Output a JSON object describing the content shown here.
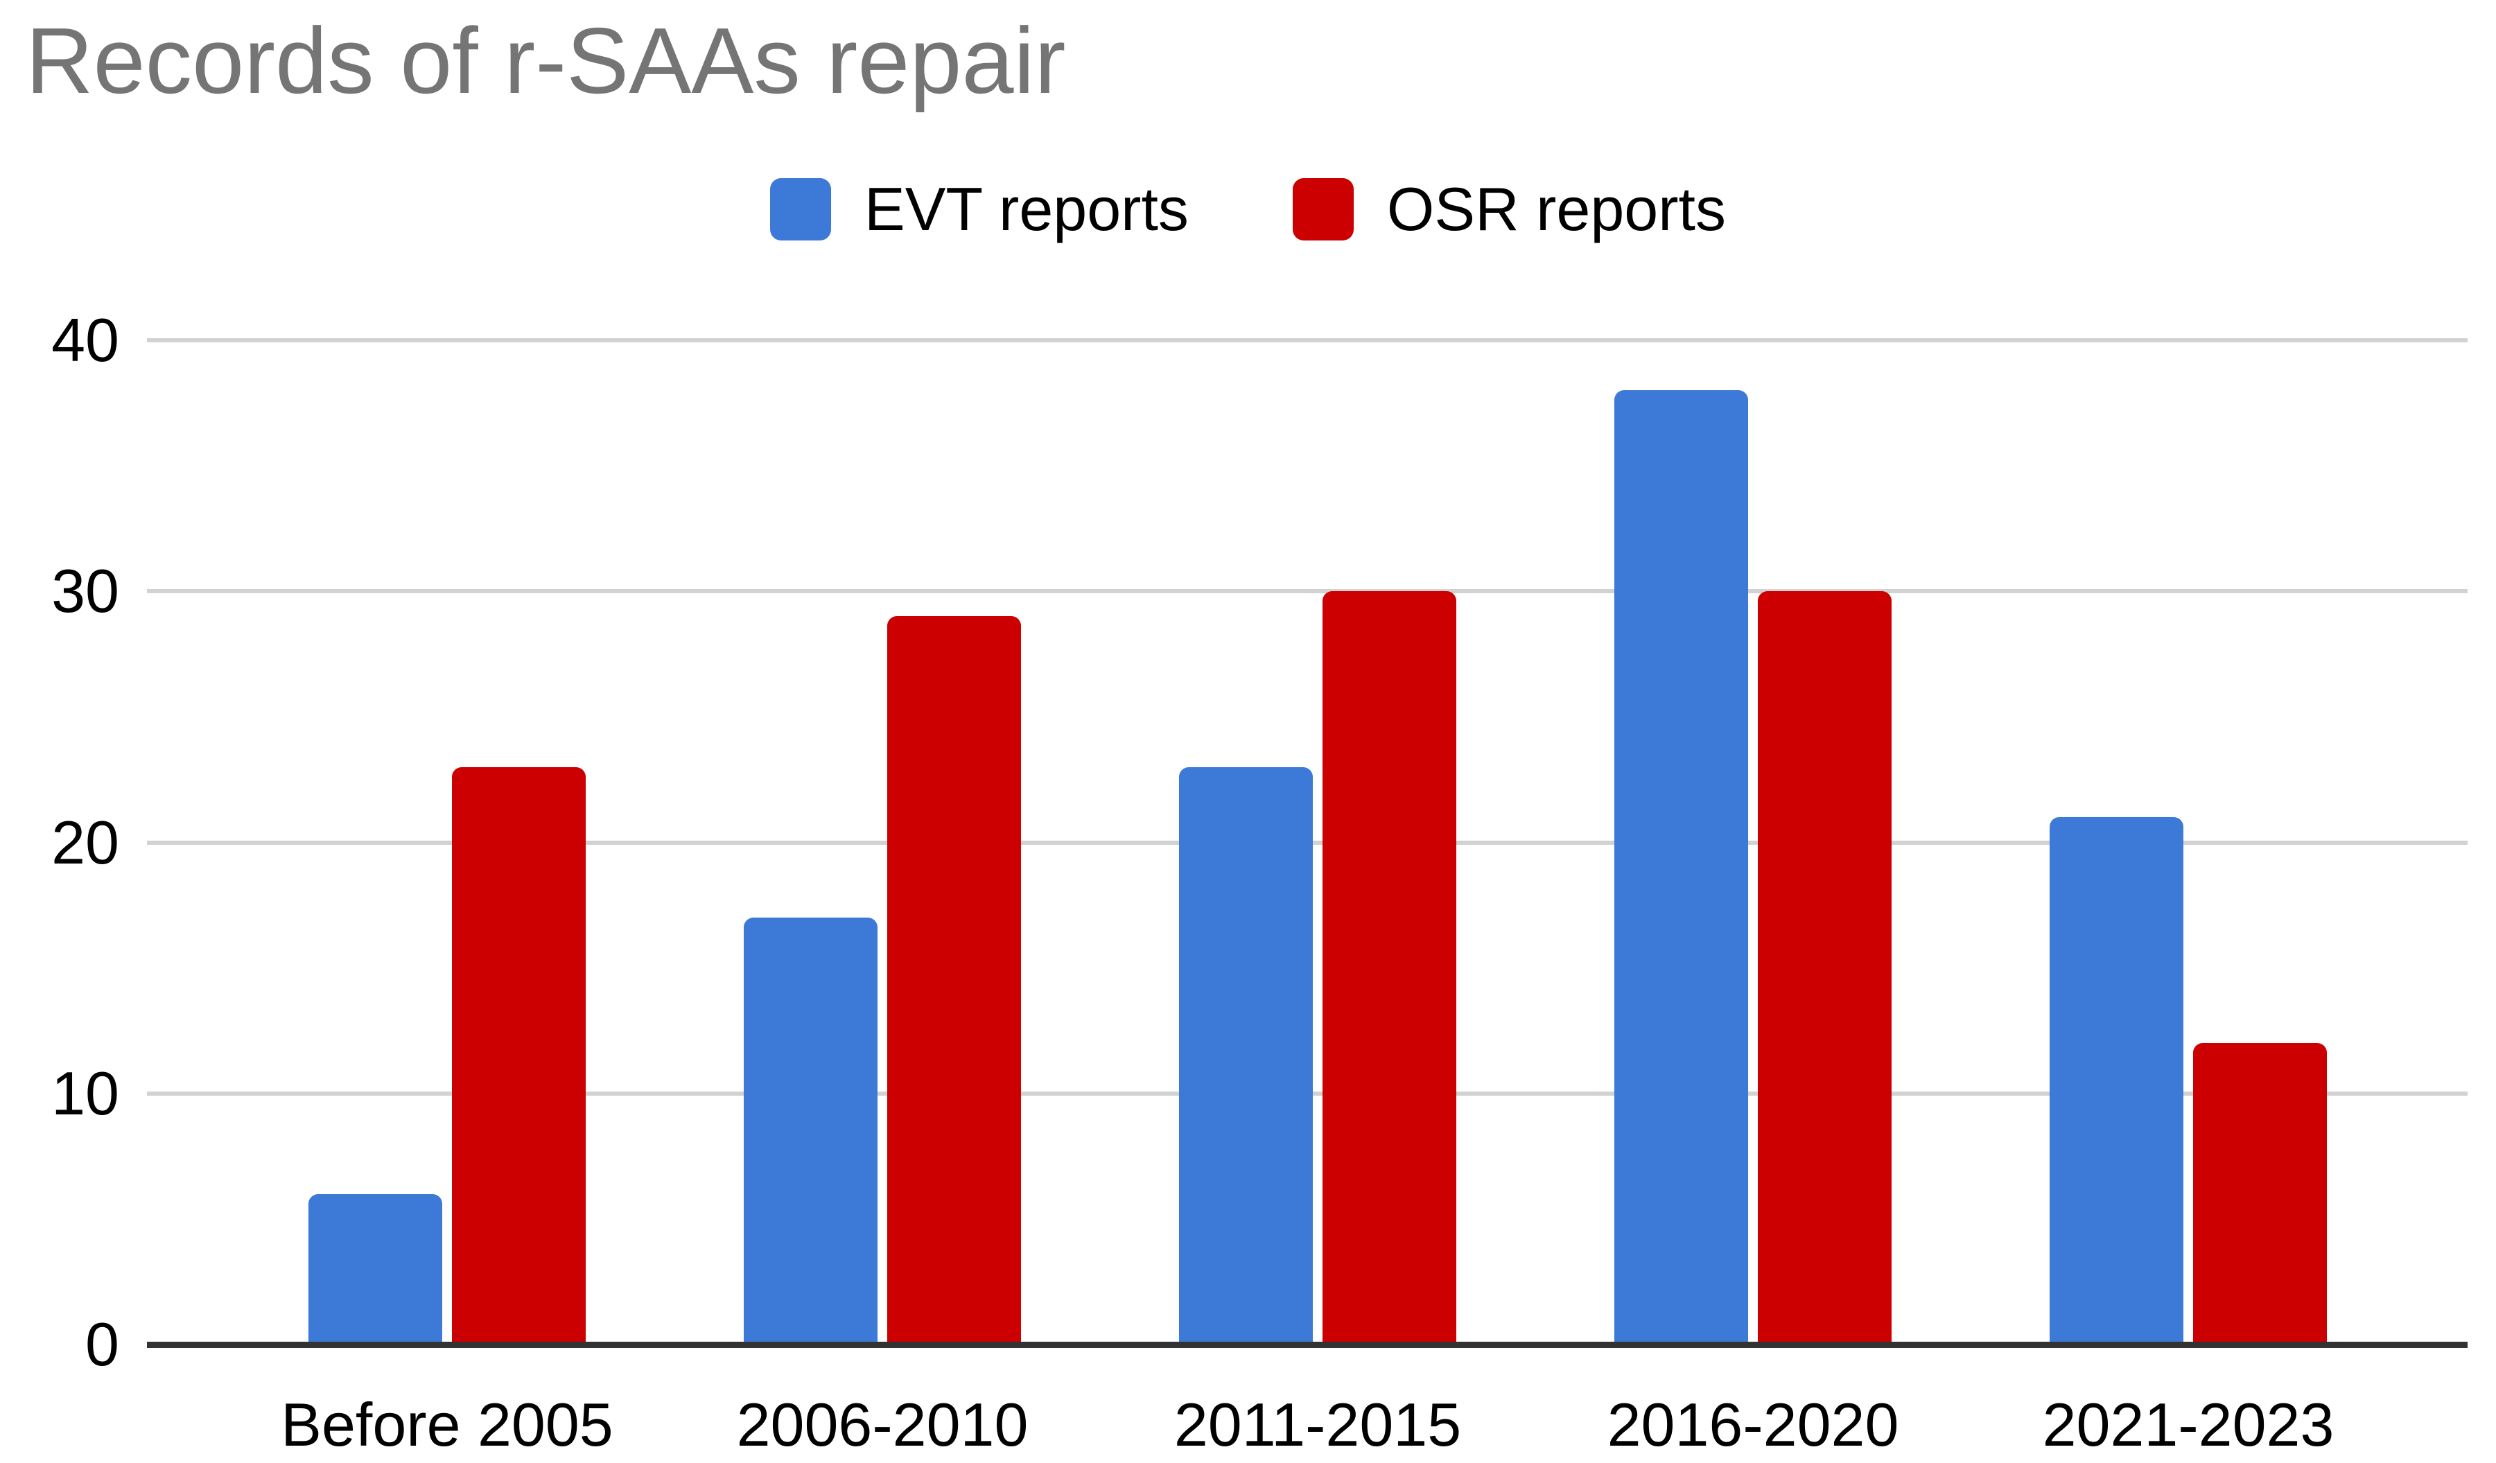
{
  "title": "Records of r-SAAs repair",
  "colors": {
    "evt_blue": "#3D7AD8",
    "osr_red": "#CC0000",
    "title_gray": "#757575",
    "gridline_gray": "#D2D2D2",
    "axis_dark": "#333333"
  },
  "legend": {
    "items": [
      {
        "label": "EVT reports",
        "color": "#3D7AD8"
      },
      {
        "label": "OSR reports",
        "color": "#CC0000"
      }
    ]
  },
  "chart_data": {
    "type": "bar",
    "title": "Records of r-SAAs repair",
    "categories": [
      "Before 2005",
      "2006-2010",
      "2011-2015",
      "2016-2020",
      "2021-2023"
    ],
    "series": [
      {
        "name": "EVT reports",
        "color": "#3D7AD8",
        "values": [
          6,
          17,
          23,
          38,
          21
        ]
      },
      {
        "name": "OSR reports",
        "color": "#CC0000",
        "values": [
          23,
          29,
          30,
          30,
          12
        ]
      }
    ],
    "xlabel": "",
    "ylabel": "",
    "y_ticks": [
      0,
      10,
      20,
      30,
      40
    ],
    "ylim": [
      0,
      40
    ],
    "grid": true,
    "legend_position": "top-center"
  }
}
